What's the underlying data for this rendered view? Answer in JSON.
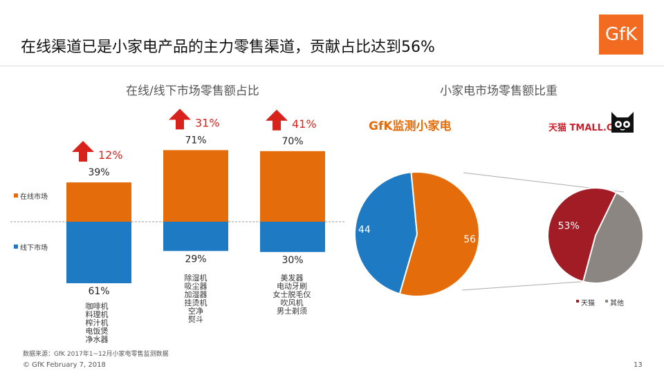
{
  "title": "在线渠道已是小家电产品的主力零售渠道，贡献占比达到56%",
  "logo": "GfK",
  "bar_subtitle": "在线/线下市场零售额占比",
  "pie_subtitle": "小家电市场零售额比重",
  "gfk_label": "GfK监测小家电",
  "tmall_label": "天猫 TMALL.COM",
  "colors": {
    "online": "#e46c0a",
    "offline": "#1f7ac4",
    "up_arrow": "#d8221c",
    "tmall": "#a11c25",
    "other": "#8c8682"
  },
  "categories_lists": [
    [
      "咖啡机",
      "料理机",
      "榨汁机",
      "电饭煲",
      "净水器"
    ],
    [
      "除湿机",
      "吸尘器",
      "加湿器",
      "挂烫机",
      "空净",
      "熨斗"
    ],
    [
      "美发器",
      "电动牙刷",
      "女士脱毛仪",
      "吹风机",
      "男士剃须"
    ]
  ],
  "source_note": "数据来源：GfK 2017年1~12月小家电零售监测数据",
  "footer": "© GfK February 7, 2018",
  "page_number": "13",
  "chart_data": [
    {
      "type": "bar",
      "stacked": true,
      "title": "在线/线下市场零售额占比",
      "series": [
        {
          "name": "在线市场",
          "values": [
            39,
            71,
            70
          ],
          "labels": [
            "39%",
            "71%",
            "70%"
          ]
        },
        {
          "name": "线下市场",
          "values": [
            61,
            29,
            30
          ],
          "labels": [
            "61%",
            "29%",
            "30%"
          ]
        }
      ],
      "growth": [
        12,
        31,
        41
      ],
      "growth_labels": [
        "12%",
        "31%",
        "41%"
      ],
      "legend_placement": "left"
    },
    {
      "type": "pie",
      "title": "GfK监测小家电",
      "slices": [
        {
          "name": "线下市场",
          "value": 44,
          "label": "44"
        },
        {
          "name": "在线市场",
          "value": 56,
          "label": "56"
        }
      ]
    },
    {
      "type": "pie",
      "title": "天猫",
      "slices": [
        {
          "name": "天猫",
          "value": 53,
          "label": "53%"
        },
        {
          "name": "其他",
          "value": 47,
          "label": ""
        }
      ],
      "legend": [
        "天猫",
        "其他"
      ],
      "legend_placement": "bottom"
    }
  ]
}
